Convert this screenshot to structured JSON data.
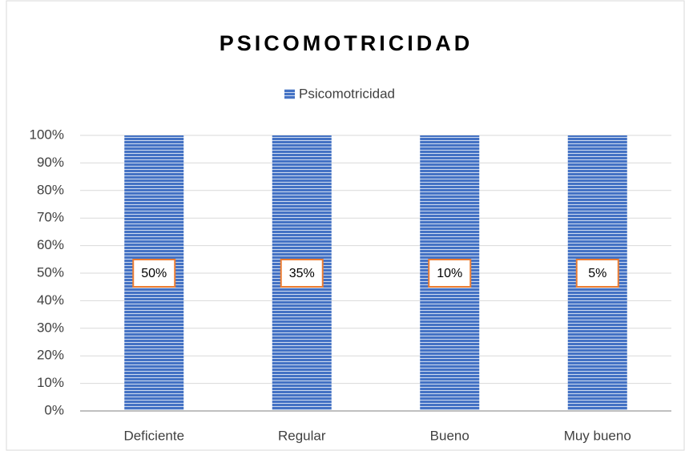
{
  "chart_data": {
    "type": "bar",
    "stacking": "percent",
    "title": "PSICOMOTRICIDAD",
    "categories": [
      "Deficiente",
      "Regular",
      "Bueno",
      "Muy bueno"
    ],
    "series": [
      {
        "name": "Psicomotricidad",
        "color": "#4472c4",
        "values": [
          50,
          35,
          10,
          5
        ],
        "value_labels": [
          "50%",
          "35%",
          "10%",
          "5%"
        ]
      }
    ],
    "ylim": [
      0,
      100
    ],
    "yticks": [
      {
        "value": 0,
        "label": "0%"
      },
      {
        "value": 10,
        "label": "10%"
      },
      {
        "value": 20,
        "label": "20%"
      },
      {
        "value": 30,
        "label": "30%"
      },
      {
        "value": 40,
        "label": "40%"
      },
      {
        "value": 50,
        "label": "50%"
      },
      {
        "value": 60,
        "label": "60%"
      },
      {
        "value": 70,
        "label": "70%"
      },
      {
        "value": 80,
        "label": "80%"
      },
      {
        "value": 90,
        "label": "90%"
      },
      {
        "value": 100,
        "label": "100%"
      }
    ],
    "grid": true,
    "legend": "top",
    "label_border_color": "#ed7d31"
  }
}
